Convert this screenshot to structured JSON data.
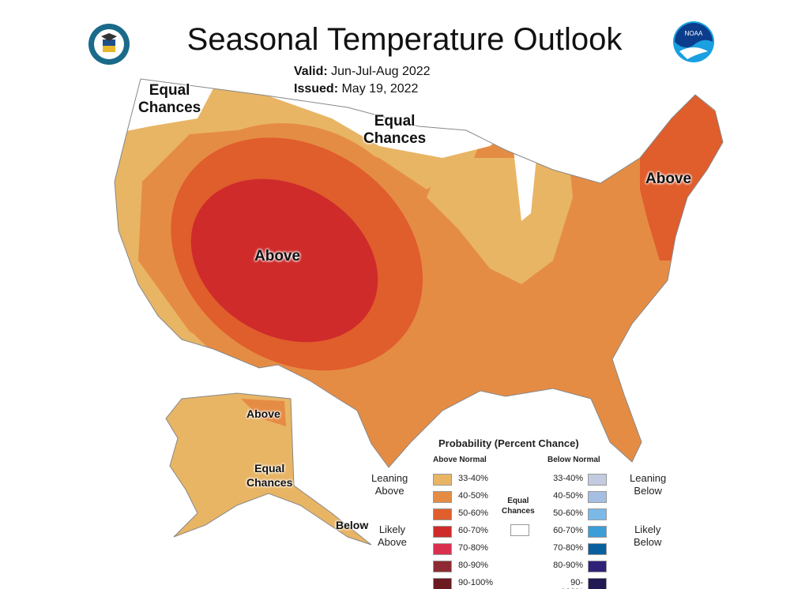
{
  "title": "Seasonal Temperature Outlook",
  "valid_label": "Valid:",
  "valid_value": "Jun-Jul-Aug 2022",
  "issued_label": "Issued:",
  "issued_value": "May 19, 2022",
  "logos": {
    "left": "Department of Commerce seal",
    "right": "NOAA",
    "right_text": "NOAA"
  },
  "map_labels": {
    "ec_northwest": [
      "Equal",
      "Chances"
    ],
    "ec_north": [
      "Equal",
      "Chances"
    ],
    "above_west": "Above",
    "above_northeast": "Above",
    "above_alaska": "Above",
    "ec_alaska": [
      "Equal",
      "Chances"
    ],
    "below_alaska": "Below"
  },
  "legend": {
    "title": "Probability (Percent Chance)",
    "above_header": "Above Normal",
    "below_header": "Below Normal",
    "leaning_above": [
      "Leaning",
      "Above"
    ],
    "likely_above": [
      "Likely",
      "Above"
    ],
    "leaning_below": [
      "Leaning",
      "Below"
    ],
    "likely_below": [
      "Likely",
      "Below"
    ],
    "equal_chances": [
      "Equal",
      "Chances"
    ],
    "ranges": [
      "33-40%",
      "40-50%",
      "50-60%",
      "60-70%",
      "70-80%",
      "80-90%",
      "90-100%"
    ],
    "above_colors": [
      "#e8b565",
      "#e58c44",
      "#e05d2c",
      "#cf2b2b",
      "#d9304e",
      "#8e2a33",
      "#6b1a20"
    ],
    "below_colors": [
      "#c3cbe0",
      "#a5bfe3",
      "#7ab9e8",
      "#3c9ed9",
      "#0a5f9e",
      "#2f2278",
      "#211a55"
    ],
    "equal_color": "#ffffff"
  }
}
